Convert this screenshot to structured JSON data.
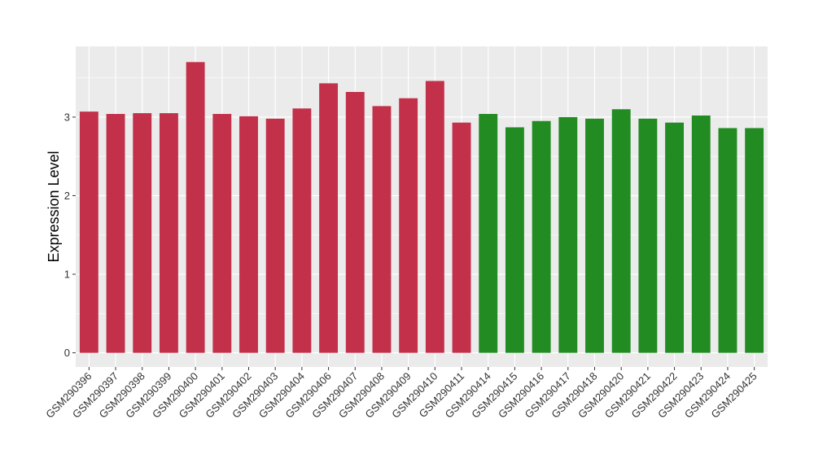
{
  "chart_data": {
    "type": "bar",
    "title": "",
    "xlabel": "",
    "ylabel": "Expression Level",
    "ylim": [
      -0.18,
      3.9
    ],
    "yticks": [
      0,
      1,
      2,
      3
    ],
    "grid": true,
    "legend": "none",
    "panel_color": "#EBEBEB",
    "categories": [
      "GSM290396",
      "GSM290397",
      "GSM290398",
      "GSM290399",
      "GSM290400",
      "GSM290401",
      "GSM290402",
      "GSM290403",
      "GSM290404",
      "GSM290406",
      "GSM290407",
      "GSM290408",
      "GSM290409",
      "GSM290410",
      "GSM290411",
      "GSM290414",
      "GSM290415",
      "GSM290416",
      "GSM290417",
      "GSM290418",
      "GSM290420",
      "GSM290421",
      "GSM290422",
      "GSM290423",
      "GSM290424",
      "GSM290425"
    ],
    "values": [
      3.07,
      3.04,
      3.05,
      3.05,
      3.7,
      3.04,
      3.01,
      2.98,
      3.11,
      3.43,
      3.32,
      3.14,
      3.24,
      3.46,
      2.93,
      3.04,
      2.87,
      2.95,
      3.0,
      2.98,
      3.1,
      2.98,
      2.93,
      3.02,
      2.86,
      2.86
    ],
    "colors": [
      "#C3304A",
      "#C3304A",
      "#C3304A",
      "#C3304A",
      "#C3304A",
      "#C3304A",
      "#C3304A",
      "#C3304A",
      "#C3304A",
      "#C3304A",
      "#C3304A",
      "#C3304A",
      "#C3304A",
      "#C3304A",
      "#C3304A",
      "#228B22",
      "#228B22",
      "#228B22",
      "#228B22",
      "#228B22",
      "#228B22",
      "#228B22",
      "#228B22",
      "#228B22",
      "#228B22",
      "#228B22"
    ]
  }
}
